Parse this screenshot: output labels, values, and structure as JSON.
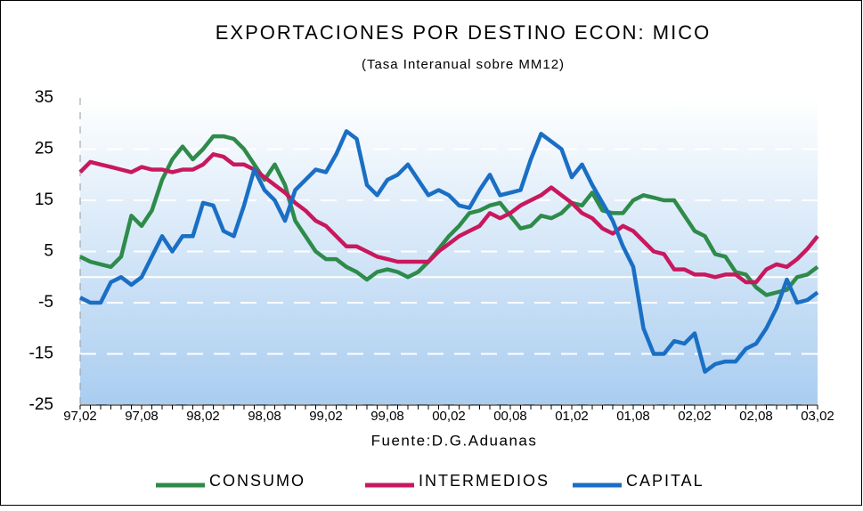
{
  "chart_data": {
    "type": "line",
    "title": "EXPORTACIONES POR DESTINO ECON: MICO",
    "subtitle": "(Tasa Interanual sobre MM12)",
    "source": "Fuente:D.G.Aduanas",
    "categories": [
      "97,02",
      null,
      null,
      null,
      null,
      null,
      "97,08",
      null,
      null,
      null,
      null,
      null,
      "98,02",
      null,
      null,
      null,
      null,
      null,
      "98,08",
      null,
      null,
      null,
      null,
      null,
      "99,02",
      null,
      null,
      null,
      null,
      null,
      "99,08",
      null,
      null,
      null,
      null,
      null,
      "00,02",
      null,
      null,
      null,
      null,
      null,
      "00,08",
      null,
      null,
      null,
      null,
      null,
      "01,02",
      null,
      null,
      null,
      null,
      null,
      "01,08",
      null,
      null,
      null,
      null,
      null,
      "02,02",
      null,
      null,
      null,
      null,
      null,
      "02,08",
      null,
      null,
      null,
      null,
      null,
      "03,02"
    ],
    "series": [
      {
        "name": "CONSUMO",
        "color": "#2e8b4a",
        "values": [
          4,
          3,
          2.5,
          2,
          4,
          12,
          10,
          13,
          19,
          23,
          25.5,
          23,
          25,
          27.5,
          27.5,
          27,
          25,
          22,
          19,
          22,
          18,
          11,
          8,
          5,
          3.5,
          3.5,
          2,
          1,
          -0.5,
          1,
          1.5,
          1,
          0,
          1,
          3,
          5.5,
          8,
          10,
          12.5,
          13,
          14,
          14.5,
          12,
          9.5,
          10,
          12,
          11.5,
          12.5,
          14.5,
          14,
          16.5,
          13,
          12.5,
          12.5,
          15,
          16,
          15.5,
          15,
          15,
          12,
          9,
          8,
          4.5,
          4,
          1,
          0.5,
          -2,
          -3.5,
          -3,
          -2.5,
          0,
          0.5,
          2
        ]
      },
      {
        "name": "INTERMEDIOS",
        "color": "#c8185e",
        "values": [
          20.5,
          22.5,
          22,
          21.5,
          21,
          20.5,
          21.5,
          21,
          21,
          20.5,
          21,
          21,
          22,
          24,
          23.5,
          22,
          22,
          21,
          19.5,
          18,
          16.5,
          14.5,
          13,
          11,
          10,
          8,
          6,
          6,
          5,
          4,
          3.5,
          3,
          3,
          3,
          3,
          5,
          6.5,
          8,
          9,
          10,
          12.5,
          11.5,
          12.5,
          14,
          15,
          16,
          17.5,
          16,
          14.5,
          12.5,
          11.5,
          9.5,
          8.5,
          10,
          9,
          7,
          5,
          4.5,
          1.5,
          1.5,
          0.5,
          0.5,
          0,
          0.5,
          0.5,
          -1,
          -1,
          1.5,
          2.5,
          2,
          3.5,
          5.5,
          8
        ]
      },
      {
        "name": "CAPITAL",
        "color": "#1a6fc4",
        "values": [
          -4,
          -5,
          -5,
          -1,
          0,
          -1.5,
          0,
          4,
          8,
          5,
          8,
          8,
          14.5,
          14,
          9,
          8,
          14,
          21,
          17,
          15,
          11,
          17,
          19,
          21,
          20.5,
          24,
          28.5,
          27,
          18,
          16,
          19,
          20,
          22,
          19,
          16,
          17,
          16,
          14,
          13.5,
          17,
          20,
          16,
          16.5,
          17,
          23,
          28,
          26.5,
          25,
          19.5,
          22,
          18,
          14.5,
          11,
          6,
          2,
          -10,
          -15,
          -15,
          -12.5,
          -13,
          -11,
          -18.5,
          -17,
          -16.5,
          -16.5,
          -14,
          -13,
          -10,
          -6,
          -0.5,
          -5,
          -4.5,
          -3
        ]
      }
    ],
    "ylim": [
      -25,
      35
    ],
    "yticks": [
      -25,
      -15,
      -5,
      5,
      15,
      25,
      35
    ],
    "grid": true
  }
}
